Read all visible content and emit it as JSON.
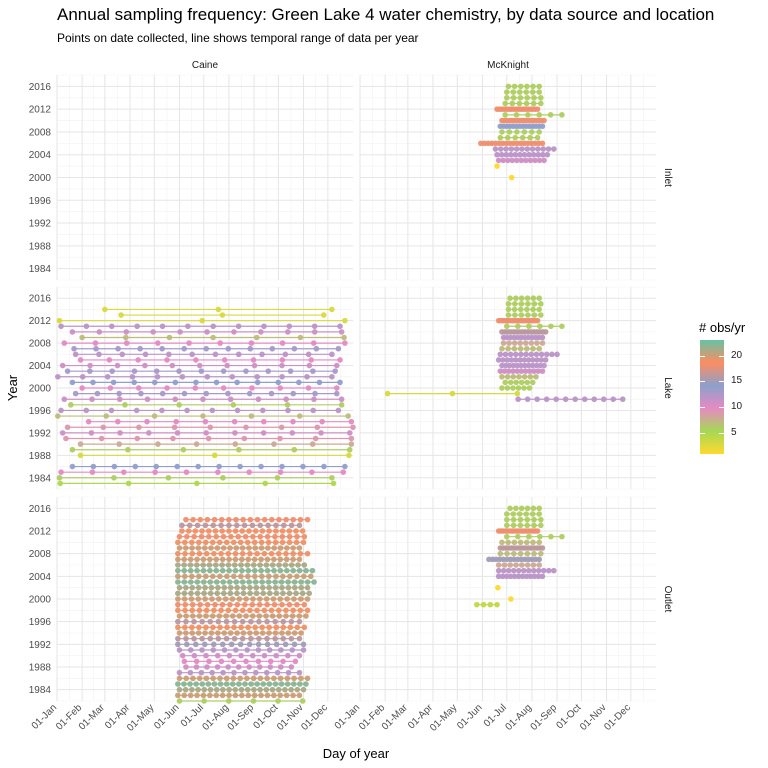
{
  "title": "Annual sampling frequency: Green Lake 4 water chemistry, by data source and location",
  "subtitle": "Points on date collected, line shows temporal range of data per year",
  "legend": {
    "title": "# obs/yr",
    "ticks": [
      5,
      10,
      15,
      20
    ],
    "range": [
      1,
      23
    ],
    "colors": [
      "#FFD92F",
      "#A6D854",
      "#E78AC3",
      "#8DA0CB",
      "#FC8D62",
      "#66C2A5"
    ]
  },
  "chart_data": {
    "type": "scatter",
    "xlabel": "Day of year",
    "ylabel": "Year",
    "x_ticks": [
      "01-Jan",
      "01-Feb",
      "01-Mar",
      "01-Apr",
      "01-May",
      "01-Jun",
      "01-Jul",
      "01-Aug",
      "01-Sep",
      "01-Oct",
      "01-Nov",
      "01-Dec"
    ],
    "y_ticks": [
      1984,
      1988,
      1992,
      1996,
      2000,
      2004,
      2008,
      2012,
      2016
    ],
    "xlim": [
      1,
      366
    ],
    "ylim": [
      1982,
      2018
    ],
    "columns": [
      "Caine",
      "McKnight"
    ],
    "rows": [
      "Inlet",
      "Lake",
      "Outlet"
    ],
    "panels": [
      {
        "source": "Caine",
        "location": "Inlet",
        "years": []
      },
      {
        "source": "McKnight",
        "location": "Inlet",
        "years": [
          {
            "year": 2002,
            "n": 1,
            "start": 170,
            "end": 170
          },
          {
            "year": 2000,
            "n": 1,
            "start": 188,
            "end": 188
          },
          {
            "year": 2003,
            "n": 11,
            "start": 172,
            "end": 228
          },
          {
            "year": 2004,
            "n": 12,
            "start": 170,
            "end": 232
          },
          {
            "year": 2005,
            "n": 12,
            "start": 168,
            "end": 240
          },
          {
            "year": 2006,
            "n": 18,
            "start": 150,
            "end": 226
          },
          {
            "year": 2007,
            "n": 6,
            "start": 174,
            "end": 220
          },
          {
            "year": 2008,
            "n": 6,
            "start": 176,
            "end": 222
          },
          {
            "year": 2009,
            "n": 14,
            "start": 174,
            "end": 226
          },
          {
            "year": 2010,
            "n": 18,
            "start": 176,
            "end": 228
          },
          {
            "year": 2011,
            "n": 6,
            "start": 180,
            "end": 250
          },
          {
            "year": 2012,
            "n": 18,
            "start": 170,
            "end": 220
          },
          {
            "year": 2013,
            "n": 6,
            "start": 180,
            "end": 224
          },
          {
            "year": 2014,
            "n": 6,
            "start": 182,
            "end": 224
          },
          {
            "year": 2015,
            "n": 6,
            "start": 182,
            "end": 222
          },
          {
            "year": 2016,
            "n": 6,
            "start": 184,
            "end": 222
          }
        ]
      },
      {
        "source": "Caine",
        "location": "Lake",
        "years": [
          {
            "year": 1983,
            "n": 5,
            "start": 5,
            "end": 342
          },
          {
            "year": 1984,
            "n": 6,
            "start": 4,
            "end": 340
          },
          {
            "year": 1985,
            "n": 10,
            "start": 6,
            "end": 354
          },
          {
            "year": 1986,
            "n": 14,
            "start": 20,
            "end": 356
          },
          {
            "year": 1988,
            "n": 3,
            "start": 30,
            "end": 361
          },
          {
            "year": 1989,
            "n": 6,
            "start": 20,
            "end": 362
          },
          {
            "year": 1990,
            "n": 8,
            "start": 30,
            "end": 364
          },
          {
            "year": 1991,
            "n": 9,
            "start": 12,
            "end": 364
          },
          {
            "year": 1992,
            "n": 11,
            "start": 8,
            "end": 362
          },
          {
            "year": 1993,
            "n": 9,
            "start": 14,
            "end": 366
          },
          {
            "year": 1994,
            "n": 10,
            "start": 40,
            "end": 364
          },
          {
            "year": 1995,
            "n": 7,
            "start": 2,
            "end": 360
          },
          {
            "year": 1996,
            "n": 12,
            "start": 6,
            "end": 348
          },
          {
            "year": 1997,
            "n": 6,
            "start": 18,
            "end": 352
          },
          {
            "year": 1998,
            "n": 11,
            "start": 10,
            "end": 352
          },
          {
            "year": 1999,
            "n": 13,
            "start": 24,
            "end": 346
          },
          {
            "year": 2000,
            "n": 10,
            "start": 32,
            "end": 346
          },
          {
            "year": 2001,
            "n": 14,
            "start": 20,
            "end": 350
          },
          {
            "year": 2002,
            "n": 12,
            "start": 2,
            "end": 340
          },
          {
            "year": 2003,
            "n": 13,
            "start": 14,
            "end": 344
          },
          {
            "year": 2004,
            "n": 11,
            "start": 8,
            "end": 346
          },
          {
            "year": 2005,
            "n": 10,
            "start": 30,
            "end": 350
          },
          {
            "year": 2006,
            "n": 12,
            "start": 24,
            "end": 340
          },
          {
            "year": 2007,
            "n": 13,
            "start": 22,
            "end": 348
          },
          {
            "year": 2008,
            "n": 10,
            "start": 10,
            "end": 356
          },
          {
            "year": 2009,
            "n": 7,
            "start": 32,
            "end": 355
          },
          {
            "year": 2010,
            "n": 11,
            "start": 20,
            "end": 352
          },
          {
            "year": 2011,
            "n": 12,
            "start": 6,
            "end": 350
          },
          {
            "year": 2012,
            "n": 3,
            "start": 4,
            "end": 356
          },
          {
            "year": 2013,
            "n": 3,
            "start": 80,
            "end": 330
          },
          {
            "year": 2014,
            "n": 3,
            "start": 60,
            "end": 340
          }
        ]
      },
      {
        "source": "McKnight",
        "location": "Lake",
        "years": [
          {
            "year": 1998,
            "n": 12,
            "start": 196,
            "end": 325
          },
          {
            "year": 1999,
            "n": 3,
            "start": 35,
            "end": 195
          },
          {
            "year": 2000,
            "n": 6,
            "start": 176,
            "end": 210
          },
          {
            "year": 2001,
            "n": 6,
            "start": 180,
            "end": 214
          },
          {
            "year": 2002,
            "n": 7,
            "start": 176,
            "end": 218
          },
          {
            "year": 2003,
            "n": 11,
            "start": 174,
            "end": 226
          },
          {
            "year": 2004,
            "n": 12,
            "start": 176,
            "end": 228
          },
          {
            "year": 2005,
            "n": 12,
            "start": 172,
            "end": 230
          },
          {
            "year": 2006,
            "n": 12,
            "start": 174,
            "end": 244
          },
          {
            "year": 2007,
            "n": 7,
            "start": 176,
            "end": 222
          },
          {
            "year": 2008,
            "n": 8,
            "start": 178,
            "end": 226
          },
          {
            "year": 2009,
            "n": 12,
            "start": 178,
            "end": 226
          },
          {
            "year": 2010,
            "n": 16,
            "start": 176,
            "end": 230
          },
          {
            "year": 2011,
            "n": 6,
            "start": 182,
            "end": 250
          },
          {
            "year": 2012,
            "n": 18,
            "start": 172,
            "end": 220
          },
          {
            "year": 2013,
            "n": 6,
            "start": 184,
            "end": 224
          },
          {
            "year": 2014,
            "n": 6,
            "start": 184,
            "end": 222
          },
          {
            "year": 2015,
            "n": 6,
            "start": 184,
            "end": 224
          },
          {
            "year": 2016,
            "n": 6,
            "start": 186,
            "end": 222
          }
        ]
      },
      {
        "source": "Caine",
        "location": "Outlet",
        "years": [
          {
            "year": 1982,
            "n": 6,
            "start": 152,
            "end": 304
          },
          {
            "year": 1983,
            "n": 20,
            "start": 150,
            "end": 300
          },
          {
            "year": 1984,
            "n": 21,
            "start": 152,
            "end": 305
          },
          {
            "year": 1985,
            "n": 22,
            "start": 150,
            "end": 308
          },
          {
            "year": 1986,
            "n": 20,
            "start": 152,
            "end": 310
          },
          {
            "year": 1987,
            "n": 12,
            "start": 152,
            "end": 300
          },
          {
            "year": 1988,
            "n": 11,
            "start": 160,
            "end": 290
          },
          {
            "year": 1989,
            "n": 10,
            "start": 158,
            "end": 295
          },
          {
            "year": 1990,
            "n": 11,
            "start": 156,
            "end": 300
          },
          {
            "year": 1991,
            "n": 12,
            "start": 152,
            "end": 305
          },
          {
            "year": 1992,
            "n": 15,
            "start": 150,
            "end": 305
          },
          {
            "year": 1993,
            "n": 16,
            "start": 150,
            "end": 300
          },
          {
            "year": 1994,
            "n": 20,
            "start": 152,
            "end": 302
          },
          {
            "year": 1995,
            "n": 19,
            "start": 150,
            "end": 306
          },
          {
            "year": 1996,
            "n": 16,
            "start": 150,
            "end": 300
          },
          {
            "year": 1997,
            "n": 20,
            "start": 152,
            "end": 308
          },
          {
            "year": 1998,
            "n": 19,
            "start": 150,
            "end": 310
          },
          {
            "year": 1999,
            "n": 18,
            "start": 150,
            "end": 306
          },
          {
            "year": 2000,
            "n": 20,
            "start": 150,
            "end": 310
          },
          {
            "year": 2001,
            "n": 21,
            "start": 150,
            "end": 312
          },
          {
            "year": 2002,
            "n": 21,
            "start": 152,
            "end": 310
          },
          {
            "year": 2003,
            "n": 22,
            "start": 150,
            "end": 318
          },
          {
            "year": 2004,
            "n": 20,
            "start": 150,
            "end": 314
          },
          {
            "year": 2005,
            "n": 22,
            "start": 150,
            "end": 316
          },
          {
            "year": 2006,
            "n": 21,
            "start": 150,
            "end": 306
          },
          {
            "year": 2007,
            "n": 20,
            "start": 150,
            "end": 300
          },
          {
            "year": 2008,
            "n": 19,
            "start": 150,
            "end": 310
          },
          {
            "year": 2009,
            "n": 20,
            "start": 152,
            "end": 300
          },
          {
            "year": 2010,
            "n": 19,
            "start": 150,
            "end": 305
          },
          {
            "year": 2011,
            "n": 18,
            "start": 152,
            "end": 306
          },
          {
            "year": 2012,
            "n": 19,
            "start": 155,
            "end": 304
          },
          {
            "year": 2013,
            "n": 16,
            "start": 155,
            "end": 300
          },
          {
            "year": 2014,
            "n": 18,
            "start": 160,
            "end": 310
          }
        ]
      },
      {
        "source": "McKnight",
        "location": "Outlet",
        "years": [
          {
            "year": 1999,
            "n": 4,
            "start": 145,
            "end": 170
          },
          {
            "year": 2000,
            "n": 1,
            "start": 187,
            "end": 187
          },
          {
            "year": 2002,
            "n": 1,
            "start": 171,
            "end": 171
          },
          {
            "year": 2004,
            "n": 12,
            "start": 172,
            "end": 226
          },
          {
            "year": 2005,
            "n": 12,
            "start": 172,
            "end": 240
          },
          {
            "year": 2006,
            "n": 8,
            "start": 172,
            "end": 222
          },
          {
            "year": 2007,
            "n": 15,
            "start": 160,
            "end": 222
          },
          {
            "year": 2008,
            "n": 7,
            "start": 174,
            "end": 224
          },
          {
            "year": 2009,
            "n": 16,
            "start": 174,
            "end": 226
          },
          {
            "year": 2010,
            "n": 7,
            "start": 176,
            "end": 222
          },
          {
            "year": 2011,
            "n": 6,
            "start": 182,
            "end": 250
          },
          {
            "year": 2012,
            "n": 18,
            "start": 172,
            "end": 220
          },
          {
            "year": 2013,
            "n": 6,
            "start": 182,
            "end": 224
          },
          {
            "year": 2014,
            "n": 6,
            "start": 182,
            "end": 224
          },
          {
            "year": 2015,
            "n": 6,
            "start": 182,
            "end": 222
          },
          {
            "year": 2016,
            "n": 6,
            "start": 186,
            "end": 222
          }
        ]
      }
    ]
  }
}
